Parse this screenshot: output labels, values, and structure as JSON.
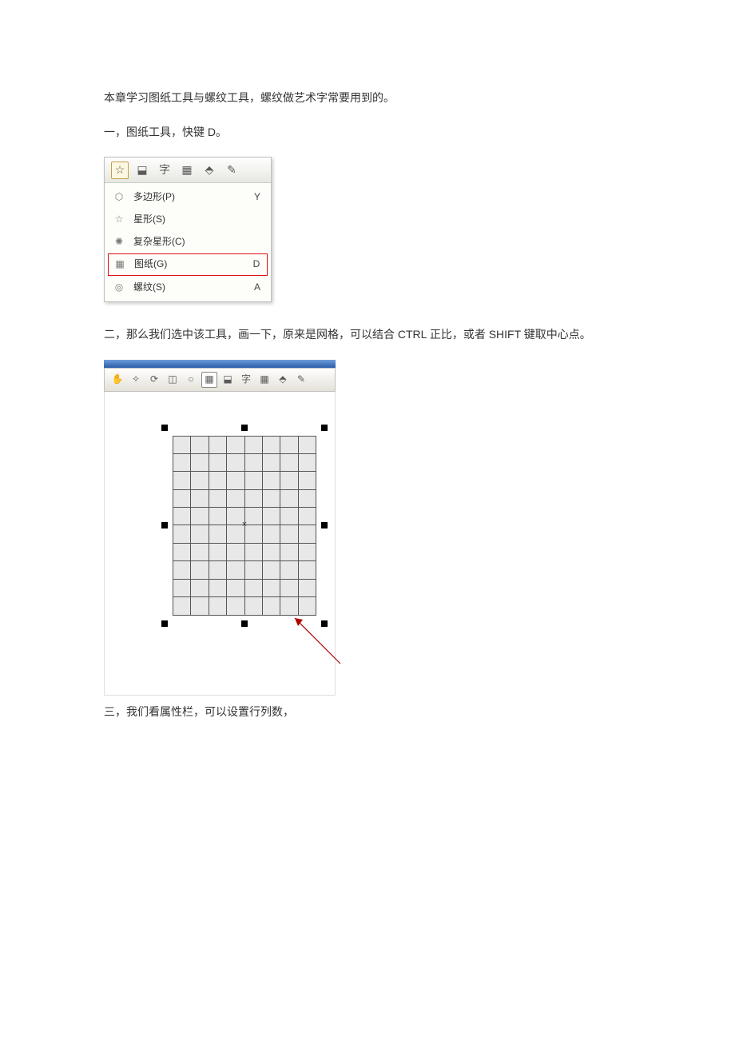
{
  "text": {
    "intro": "本章学习图纸工具与螺纹工具，螺纹做艺术字常要用到的。",
    "section1": "一，图纸工具，快键 D。",
    "section2": "二，那么我们选中该工具，画一下，原来是网格，可以结合 CTRL 正比，或者 SHIFT 键取中心点。",
    "section3": "三，我们看属性栏，可以设置行列数，"
  },
  "flyout": {
    "items": [
      {
        "icon": "⬡",
        "label": "多边形(P)",
        "key": "Y",
        "boxed": false
      },
      {
        "icon": "☆",
        "label": "星形(S)",
        "key": "",
        "boxed": false
      },
      {
        "icon": "✺",
        "label": "复杂星形(C)",
        "key": "",
        "boxed": false
      },
      {
        "icon": "▦",
        "label": "图纸(G)",
        "key": "D",
        "boxed": true
      },
      {
        "icon": "◎",
        "label": "螺纹(S)",
        "key": "A",
        "boxed": false
      }
    ]
  },
  "toolbar1": {
    "icons": [
      "☆",
      "⬓",
      "字",
      "▦",
      "⬘",
      "✎"
    ],
    "selected_index": 0,
    "colors": {
      "bg_top": "#fefefe",
      "bg_bot": "#e8e8e2",
      "border": "#bfbfbf",
      "sel_border": "#c0a050",
      "sel_bg": "#fff8e0"
    }
  },
  "toolbar2": {
    "icons": [
      "✋",
      "✧",
      "⟳",
      "◫",
      "○",
      "▦",
      "⬓",
      "字",
      "▦",
      "⬘",
      "✎"
    ],
    "selected_index": 5,
    "titlebar_colors": [
      "#6d9edb",
      "#2b5ca8"
    ]
  },
  "grid": {
    "rows": 10,
    "cols": 8,
    "cell_border_color": "#555555",
    "cell_bg": "#e8e8e8",
    "handle_color": "#000000",
    "handle_size": 8
  },
  "arrow": {
    "color": "#b00000",
    "stroke_width": 1.2
  },
  "colors": {
    "text": "#333333",
    "page_bg": "#ffffff",
    "highlight_box": "#dd1111"
  }
}
